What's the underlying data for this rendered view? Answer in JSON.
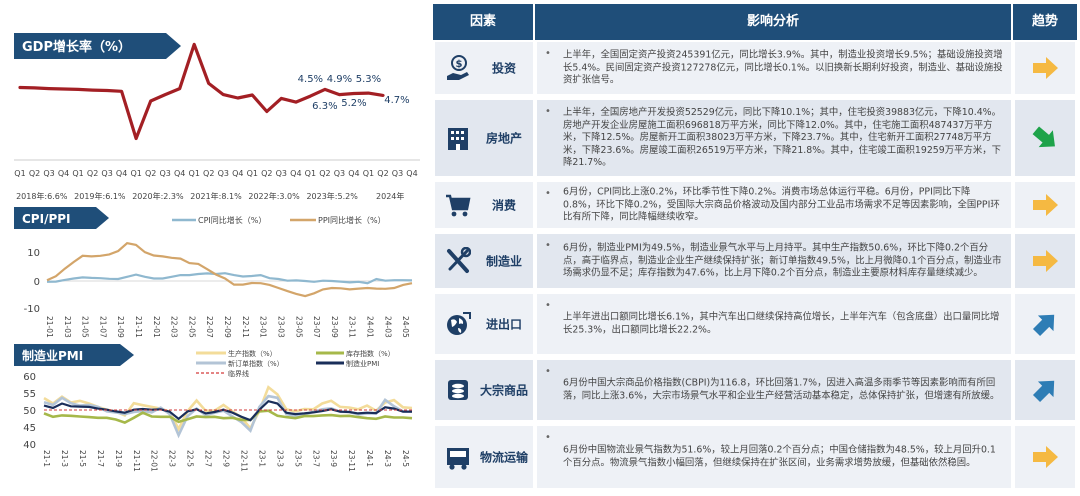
{
  "gdp": {
    "title": "GDP增长率（%）",
    "quarter_labels": [
      "Q1",
      "Q2",
      "Q3",
      "Q4",
      "Q1",
      "Q2",
      "Q3",
      "Q4",
      "Q1",
      "Q2",
      "Q3",
      "Q4",
      "Q1",
      "Q2",
      "Q3",
      "Q4",
      "Q1",
      "Q2",
      "Q3",
      "Q4",
      "Q1",
      "Q2",
      "Q3",
      "Q4",
      "Q1",
      "Q2",
      "Q3",
      "Q4"
    ],
    "year_labels": [
      "2018年:6.6%",
      "2019年:6.1%",
      "2020年:2.3%",
      "2021年:8.1%",
      "2022年:3.0%",
      "2023年:5.2%",
      "2024年"
    ],
    "data_labels": [
      "4.5%",
      "4.9%",
      "5.3%",
      "6.3%",
      "5.2%",
      "4.7%"
    ]
  },
  "cpi": {
    "title": "CPI/PPI",
    "legend": [
      "CPI同比增长（%）",
      "PPI同比增长（%）"
    ],
    "yticks": [
      "10",
      "0",
      "-10"
    ],
    "xticks": [
      "21-01",
      "21-03",
      "21-05",
      "21-07",
      "21-09",
      "21-11",
      "22-01",
      "22-03",
      "22-05",
      "22-07",
      "22-09",
      "22-11",
      "23-01",
      "23-03",
      "23-05",
      "23-07",
      "23-09",
      "23-11",
      "24-01",
      "24-03",
      "24-05"
    ]
  },
  "pmi": {
    "title": "制造业PMI",
    "legend": [
      "生产指数（%）",
      "库存指数（%）",
      "新订单指数（%）",
      "制造业PMI",
      "临界线"
    ],
    "yticks": [
      "60",
      "55",
      "50",
      "45",
      "40"
    ],
    "xticks": [
      "21-1",
      "21-3",
      "21-5",
      "21-7",
      "21-9",
      "21-11",
      "22-01",
      "22-3",
      "22-5",
      "22-7",
      "22-9",
      "22-11",
      "23-1",
      "23-3",
      "23-5",
      "23-7",
      "23-9",
      "23-11",
      "24-1",
      "24-3",
      "24-5"
    ]
  },
  "table": {
    "headers": [
      "因素",
      "影响分析",
      "趋势"
    ],
    "rows": [
      {
        "factor": "投资",
        "icon": "investment-icon",
        "trend": "flat",
        "text": "上半年，全国固定资产投资245391亿元，同比增长3.9%。其中，制造业投资增长9.5%；基础设施投资增长5.4%。民间固定资产投资127278亿元，同比增长0.1%。以旧换新长期利好投资，制造业、基础设施投资扩张信号。"
      },
      {
        "factor": "房地产",
        "icon": "building-icon",
        "trend": "down",
        "text": "上半年，全国房地产开发投资52529亿元，同比下降10.1%；其中，住宅投资39883亿元，下降10.4%。房地产开发企业房屋施工面积696818万平方米，同比下降12.0%。其中，住宅施工面积487437万平方米，下降12.5%。房屋新开工面积38023万平方米，下降23.7%。其中，住宅新开工面积27748万平方米，下降23.6%。房屋竣工面积26519万平方米，下降21.8%。其中，住宅竣工面积19259万平方米，下降21.7%。"
      },
      {
        "factor": "消费",
        "icon": "cart-icon",
        "trend": "flat",
        "text": "6月份，CPI同比上涨0.2%，环比季节性下降0.2%。消费市场总体运行平稳。6月份，PPI同比下降0.8%，环比下降0.2%，受国际大宗商品价格波动及国内部分工业品市场需求不足等因素影响，全国PPI环比有所下降，同比降幅继续收窄。"
      },
      {
        "factor": "制造业",
        "icon": "tools-icon",
        "trend": "flat",
        "text": "6月份，制造业PMI为49.5%，制造业景气水平与上月持平。其中生产指数50.6%，环比下降0.2个百分点，高于临界点，制造业企业生产继续保持扩张；新订单指数49.5%，比上月微降0.1个百分点，制造业市场需求仍显不足；库存指数为47.6%，比上月下降0.2个百分点，制造业主要原材料库存量继续减少。"
      },
      {
        "factor": "进出口",
        "icon": "globe-icon",
        "trend": "up",
        "text": "上半年进出口额同比增长6.1%，其中汽车出口继续保持高位增长，上半年汽车（包含底盘）出口量同比增长25.3%，出口额同比增长22.2%。"
      },
      {
        "factor": "大宗商品",
        "icon": "coins-icon",
        "trend": "up",
        "text": "6月份中国大宗商品价格指数(CBPI)为116.8，环比回落1.7%，因进入高温多雨季节等因素影响而有所回落，同比上涨3.6%，大宗市场景气水平和企业生产经营活动基本稳定，总体保持扩张，但增速有所放缓。"
      },
      {
        "factor": "物流运输",
        "icon": "truck-icon",
        "trend": "flat",
        "text": "6月份中国物流业景气指数为51.6%，较上月回落0.2个百分点；中国仓储指数为48.5%，较上月回升0.1个百分点。物流景气指数小幅回落，但继续保持在扩张区间，业务需求增势放缓，但基础依然稳固。"
      }
    ]
  },
  "colors": {
    "navy": "#1f4e79",
    "gdp": "#a31f24",
    "cpi": "#8fb8cf",
    "ppi": "#d3a56a",
    "prod": "#f3dc9a",
    "inv": "#a6b84a",
    "neword": "#b3c4d6",
    "pmi": "#1a2e5a",
    "crit": "#d33a3a",
    "arrow_flat": "#f5b942",
    "arrow_down": "#1ea34a",
    "arrow_up": "#2e7db5"
  },
  "chart_data": [
    {
      "type": "line",
      "title": "GDP增长率（%）",
      "categories": [
        "2018Q1",
        "2018Q2",
        "2018Q3",
        "2018Q4",
        "2019Q1",
        "2019Q2",
        "2019Q3",
        "2019Q4",
        "2020Q1",
        "2020Q2",
        "2020Q3",
        "2020Q4",
        "2021Q1",
        "2021Q2",
        "2021Q3",
        "2021Q4",
        "2022Q1",
        "2022Q2",
        "2022Q3",
        "2022Q4",
        "2023Q1",
        "2023Q2",
        "2023Q3",
        "2023Q4",
        "2024Q1",
        "2024Q2",
        "2024Q3",
        "2024Q4"
      ],
      "series": [
        {
          "name": "",
          "values": [
            6.8,
            6.7,
            6.5,
            6.4,
            6.3,
            6.1,
            6.0,
            5.8,
            -6.8,
            3.2,
            4.9,
            6.5,
            18.3,
            7.9,
            4.9,
            4.0,
            4.8,
            0.4,
            3.9,
            2.9,
            4.5,
            6.3,
            4.9,
            5.2,
            5.3,
            4.7,
            null,
            null
          ]
        }
      ],
      "ylim": [
        -8,
        20
      ]
    },
    {
      "type": "line",
      "title": "CPI/PPI",
      "ylim": [
        -10,
        15
      ],
      "x": [
        "21-01",
        "21-02",
        "21-03",
        "21-04",
        "21-05",
        "21-06",
        "21-07",
        "21-08",
        "21-09",
        "21-10",
        "21-11",
        "21-12",
        "22-01",
        "22-02",
        "22-03",
        "22-04",
        "22-05",
        "22-06",
        "22-07",
        "22-08",
        "22-09",
        "22-10",
        "22-11",
        "22-12",
        "23-01",
        "23-02",
        "23-03",
        "23-04",
        "23-05",
        "23-06",
        "23-07",
        "23-08",
        "23-09",
        "23-10",
        "23-11",
        "23-12",
        "24-01",
        "24-02",
        "24-03",
        "24-04",
        "24-05",
        "24-06"
      ],
      "series": [
        {
          "name": "CPI同比增长（%）",
          "values": [
            -0.3,
            -0.2,
            0.4,
            0.9,
            1.3,
            1.1,
            1.0,
            0.8,
            0.7,
            1.5,
            2.3,
            1.5,
            0.9,
            0.9,
            1.5,
            2.1,
            2.1,
            2.5,
            2.7,
            2.5,
            2.8,
            2.1,
            1.6,
            1.8,
            2.1,
            1.0,
            0.7,
            0.1,
            0.2,
            0.0,
            -0.3,
            0.1,
            0.0,
            -0.2,
            -0.5,
            -0.3,
            -0.8,
            0.7,
            0.1,
            0.3,
            0.3,
            0.2
          ]
        },
        {
          "name": "PPI同比增长（%）",
          "values": [
            0.3,
            1.7,
            4.4,
            6.8,
            9.0,
            8.8,
            9.0,
            9.5,
            10.7,
            13.5,
            12.9,
            10.3,
            9.1,
            8.8,
            8.3,
            8.0,
            6.4,
            6.1,
            4.2,
            2.3,
            0.9,
            -1.3,
            -1.3,
            -0.7,
            -0.8,
            -1.4,
            -2.5,
            -3.6,
            -4.6,
            -5.4,
            -4.4,
            -3.0,
            -2.5,
            -2.6,
            -3.0,
            -2.7,
            -2.5,
            -2.7,
            -2.8,
            -2.5,
            -1.4,
            -0.8
          ]
        }
      ]
    },
    {
      "type": "line",
      "title": "制造业PMI",
      "ylim": [
        40,
        60
      ],
      "x": [
        "21-1",
        "21-2",
        "21-3",
        "21-4",
        "21-5",
        "21-6",
        "21-7",
        "21-8",
        "21-9",
        "21-10",
        "21-11",
        "21-12",
        "22-1",
        "22-2",
        "22-3",
        "22-4",
        "22-5",
        "22-6",
        "22-7",
        "22-8",
        "22-9",
        "22-10",
        "22-11",
        "22-12",
        "23-1",
        "23-2",
        "23-3",
        "23-4",
        "23-5",
        "23-6",
        "23-7",
        "23-8",
        "23-9",
        "23-10",
        "23-11",
        "23-12",
        "24-1",
        "24-2",
        "24-3",
        "24-4",
        "24-5",
        "24-6"
      ],
      "series": [
        {
          "name": "生产指数（%）",
          "values": [
            53.5,
            51.9,
            53.9,
            52.2,
            52.7,
            51.9,
            50.9,
            50.1,
            49.5,
            48.4,
            52.0,
            51.4,
            50.9,
            50.4,
            49.5,
            44.4,
            49.7,
            52.8,
            49.8,
            49.8,
            51.5,
            49.6,
            47.8,
            44.6,
            49.8,
            56.7,
            54.6,
            50.2,
            49.6,
            50.3,
            50.2,
            51.9,
            52.7,
            50.9,
            50.7,
            50.2,
            51.3,
            49.8,
            52.2,
            52.9,
            50.8,
            50.6
          ]
        },
        {
          "name": "库存指数（%）",
          "values": [
            49.0,
            48.0,
            48.4,
            48.3,
            48.1,
            47.9,
            47.7,
            47.7,
            47.2,
            46.3,
            47.7,
            49.2,
            48.1,
            48.0,
            48.0,
            46.5,
            47.3,
            48.1,
            47.9,
            48.0,
            47.6,
            47.7,
            47.1,
            47.1,
            49.6,
            49.8,
            48.3,
            47.9,
            47.6,
            48.2,
            48.2,
            48.4,
            48.5,
            48.2,
            48.3,
            47.9,
            47.6,
            47.4,
            48.1,
            47.8,
            47.8,
            47.6
          ]
        },
        {
          "name": "新订单指数（%）",
          "values": [
            52.3,
            51.5,
            53.6,
            52.0,
            51.3,
            51.5,
            50.9,
            49.6,
            49.3,
            48.8,
            49.4,
            49.7,
            49.3,
            50.7,
            48.8,
            42.6,
            48.2,
            50.4,
            48.5,
            49.2,
            49.8,
            48.1,
            46.4,
            43.9,
            50.9,
            54.1,
            53.6,
            48.8,
            48.3,
            48.6,
            49.5,
            50.2,
            50.5,
            49.5,
            49.4,
            48.7,
            49.0,
            49.0,
            53.0,
            51.1,
            49.6,
            49.5
          ]
        },
        {
          "name": "制造业PMI",
          "values": [
            51.3,
            50.6,
            51.9,
            51.1,
            51.0,
            50.9,
            50.4,
            50.1,
            49.6,
            49.2,
            50.1,
            50.3,
            50.1,
            50.2,
            49.5,
            47.4,
            49.6,
            50.2,
            49.0,
            49.4,
            50.1,
            49.2,
            48.0,
            47.0,
            50.1,
            52.6,
            51.9,
            49.2,
            48.8,
            49.0,
            49.3,
            49.7,
            50.2,
            49.5,
            49.4,
            49.0,
            49.2,
            49.1,
            50.8,
            50.4,
            49.5,
            49.5
          ]
        },
        {
          "name": "临界线",
          "values": [
            50,
            50,
            50,
            50,
            50,
            50,
            50,
            50,
            50,
            50,
            50,
            50,
            50,
            50,
            50,
            50,
            50,
            50,
            50,
            50,
            50,
            50,
            50,
            50,
            50,
            50,
            50,
            50,
            50,
            50,
            50,
            50,
            50,
            50,
            50,
            50,
            50,
            50,
            50,
            50,
            50,
            50
          ]
        }
      ]
    }
  ]
}
